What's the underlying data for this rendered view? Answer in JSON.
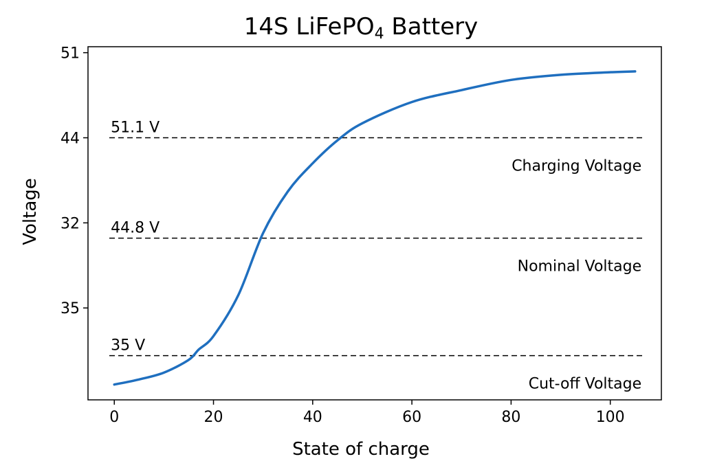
{
  "chart_data": {
    "type": "line",
    "title": "14S LiFePO",
    "title_subscript": "4",
    "title_suffix": " Battery",
    "xlabel": "State of charge",
    "ylabel": "Voltage",
    "xlim": [
      -5.3,
      110.3
    ],
    "ylim": [
      -1.08,
      3.07
    ],
    "xticks": [
      0,
      20,
      40,
      60,
      80,
      100
    ],
    "xtick_labels": [
      "0",
      "20",
      "40",
      "60",
      "80",
      "100"
    ],
    "yticks": [
      0,
      1,
      2,
      3
    ],
    "ytick_labels": [
      "35",
      "32",
      "44",
      "51"
    ],
    "grid": false,
    "line_color": "#1f6fbf",
    "series": [
      {
        "x": [
          0,
          5,
          10,
          15,
          17,
          20,
          25,
          30,
          35,
          40,
          45,
          50,
          60,
          70,
          80,
          90,
          100,
          105
        ],
        "y": [
          -0.9,
          -0.84,
          -0.76,
          -0.61,
          -0.49,
          -0.33,
          0.15,
          0.88,
          1.37,
          1.7,
          1.97,
          2.17,
          2.42,
          2.56,
          2.68,
          2.74,
          2.77,
          2.78
        ]
      }
    ],
    "reference_lines": [
      {
        "y": 2.0,
        "value_label": "51.1 V",
        "name_label": "Charging Voltage"
      },
      {
        "y": 0.82,
        "value_label": "44.8 V",
        "name_label": "Nominal Voltage"
      },
      {
        "y": -0.56,
        "value_label": "35 V",
        "name_label": "Cut-off Voltage"
      }
    ]
  }
}
